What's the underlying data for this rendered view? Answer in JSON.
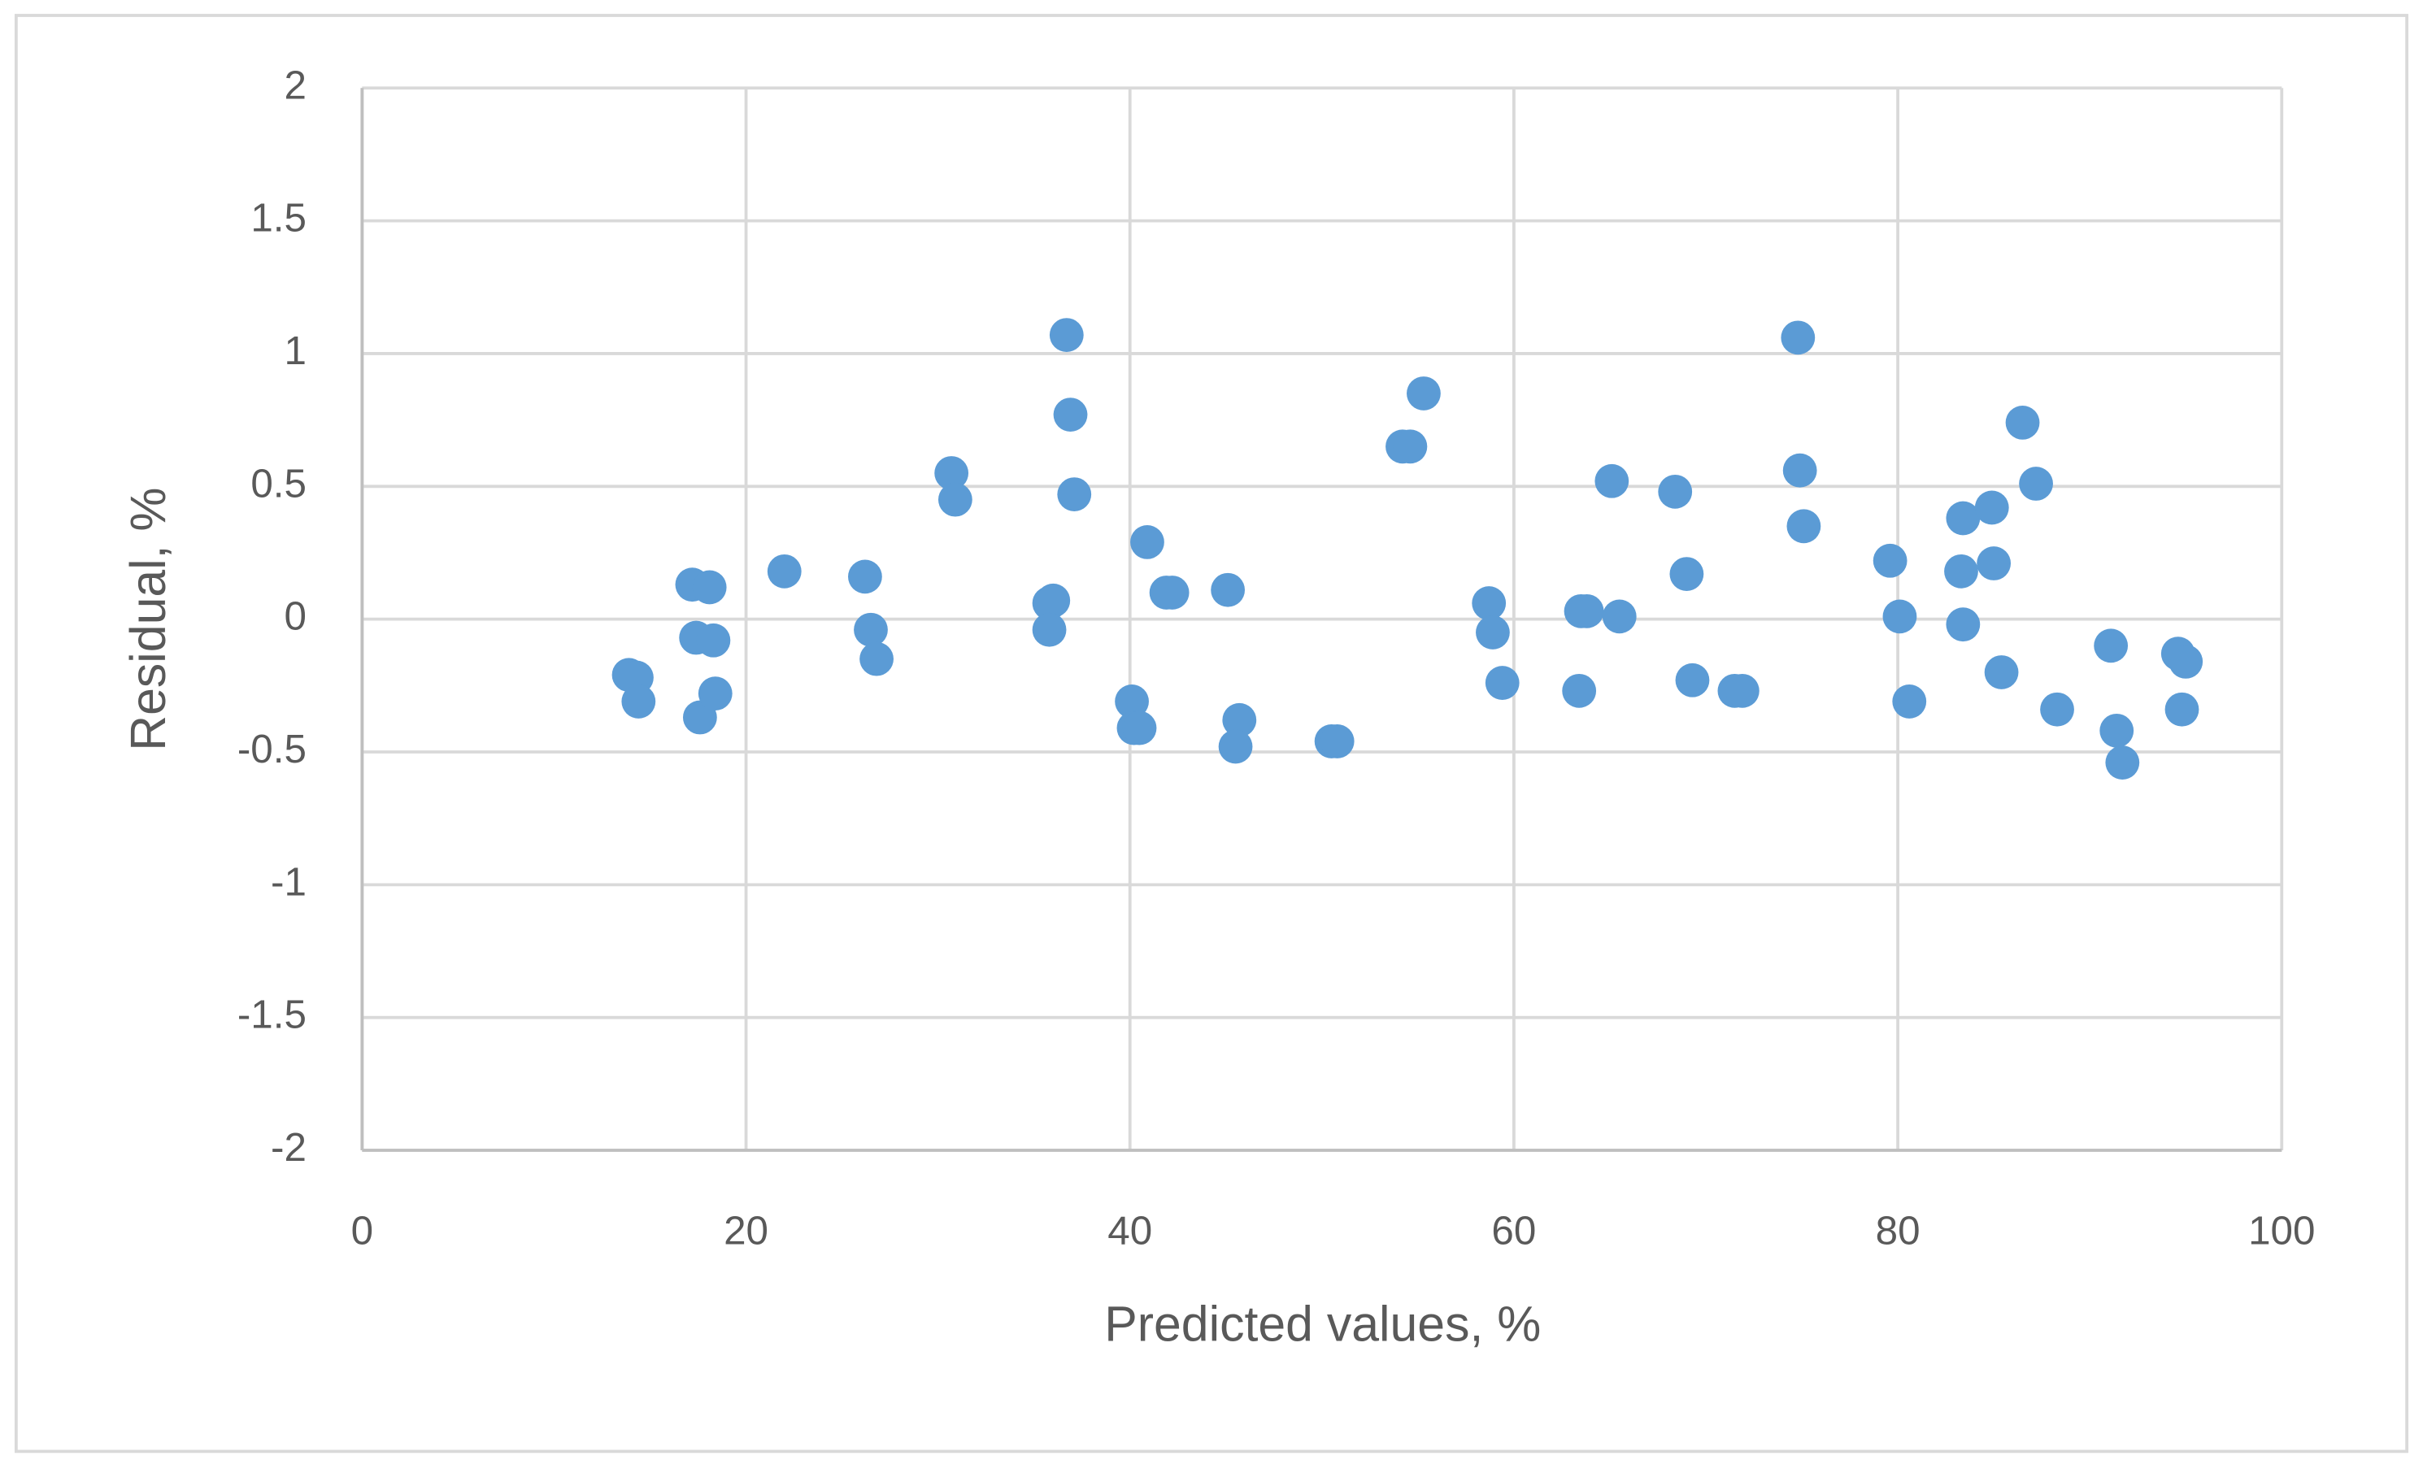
{
  "chart_data": {
    "type": "scatter",
    "x_label": "Predicted values, %",
    "y_label": "Residual, %",
    "xlim": [
      0,
      100
    ],
    "ylim": [
      -2,
      2
    ],
    "xticks": [
      0,
      20,
      40,
      60,
      80,
      100
    ],
    "yticks": [
      -2,
      -1.5,
      -1,
      -0.5,
      0,
      0.5,
      1,
      1.5,
      2
    ],
    "grid": true,
    "color": "#5b9bd5",
    "x": [
      13.9,
      14.3,
      14.4,
      17.2,
      18.1,
      17.4,
      18.3,
      17.6,
      18.4,
      22.0,
      26.2,
      26.5,
      26.8,
      30.7,
      30.9,
      35.8,
      36.0,
      35.8,
      36.7,
      36.9,
      37.1,
      40.9,
      40.1,
      40.2,
      40.5,
      41.9,
      42.2,
      45.1,
      45.7,
      45.5,
      50.5,
      50.8,
      54.2,
      54.6,
      55.3,
      58.7,
      58.9,
      59.4,
      63.4,
      63.5,
      63.8,
      65.1,
      65.5,
      68.4,
      69.0,
      69.3,
      71.5,
      71.9,
      74.8,
      74.9,
      75.1,
      79.6,
      80.1,
      80.6,
      83.4,
      83.3,
      83.4,
      84.9,
      85.0,
      85.4,
      86.5,
      87.2,
      88.3,
      91.1,
      91.4,
      91.7,
      94.6,
      95.0,
      94.8
    ],
    "y": [
      -0.21,
      -0.22,
      -0.31,
      0.13,
      0.12,
      -0.07,
      -0.08,
      -0.37,
      -0.28,
      0.18,
      0.16,
      -0.04,
      -0.15,
      0.55,
      0.45,
      0.06,
      0.07,
      -0.04,
      1.07,
      0.77,
      0.47,
      0.29,
      -0.31,
      -0.41,
      -0.41,
      0.1,
      0.1,
      0.11,
      -0.38,
      -0.48,
      -0.46,
      -0.46,
      0.65,
      0.65,
      0.85,
      0.06,
      -0.05,
      -0.24,
      -0.27,
      0.03,
      0.03,
      0.52,
      0.01,
      0.48,
      0.17,
      -0.23,
      -0.27,
      -0.27,
      1.06,
      0.56,
      0.35,
      0.22,
      0.01,
      -0.31,
      0.38,
      0.18,
      -0.02,
      0.42,
      0.21,
      -0.2,
      0.74,
      0.51,
      -0.34,
      -0.1,
      -0.42,
      -0.54,
      -0.13,
      -0.16,
      -0.34
    ]
  }
}
